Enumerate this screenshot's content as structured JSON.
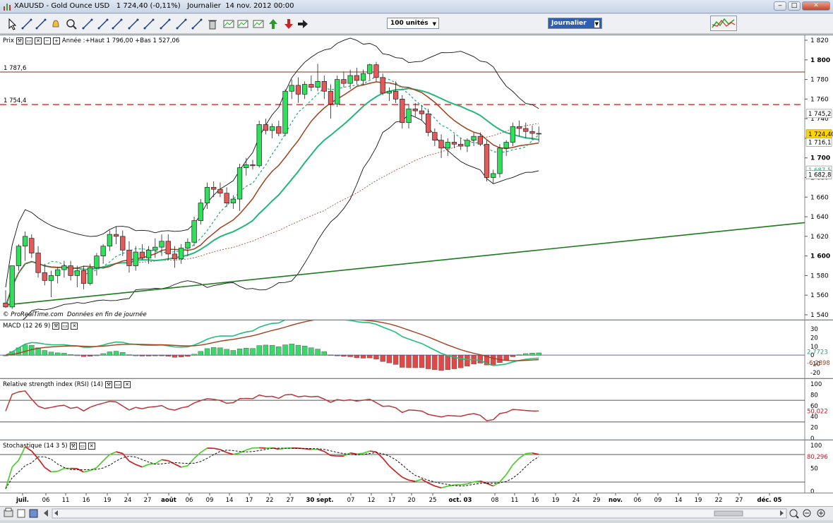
{
  "window": {
    "title": "XAUUSD - Gold Ounce USD   1 724,40 (-0,11%)   Journalier  14 nov. 2012 00:00",
    "buttons": [
      "minimize",
      "maximize",
      "close"
    ]
  },
  "toolbar": {
    "units_select": "100 unités",
    "period_select": "Journalier",
    "tools": [
      "cursor-icon",
      "ruler-icon",
      "text-icon",
      "bell-icon",
      "zoom-icon",
      "line-icon",
      "ray-icon",
      "channel-icon",
      "fibonacci-icon",
      "pitchfork-icon",
      "fan-icon",
      "trend-icon",
      "tools-icon",
      "trash-icon",
      "wave-icon",
      "rect-icon",
      "ellipse-icon",
      "up-arrow-icon",
      "down-arrow-icon",
      "right-arrow-icon"
    ]
  },
  "price_panel": {
    "label": "Prix",
    "info": "Année :+Haut 1 796,00 +Bas 1 527,06",
    "credit": "© ProRealTime.com  Données en fin de journée",
    "hline1_label": "1 787,6",
    "hline2_label": "1 754,4",
    "badges": {
      "bb_upper": "1 745,2",
      "last": "1 724,40",
      "ma": "1 716,1",
      "ma_low": "1 687,5",
      "bb_lower": "1 682,8"
    }
  },
  "macd_panel": {
    "label": "MACD (12 26 9)",
    "value1": "2,7723",
    "value2": "-6,2898",
    "ticks": [
      "30",
      "20",
      "10",
      "0",
      "-10",
      "-20"
    ]
  },
  "rsi_panel": {
    "label": "Relative strength index (RSI) (14)",
    "value": "50,022",
    "ticks": [
      "100",
      "80",
      "60",
      "40",
      "20",
      "0"
    ]
  },
  "stoch_panel": {
    "label": "Stochastique (14 3 5)",
    "value": "80,296",
    "ticks": [
      "100",
      "50",
      "0"
    ]
  },
  "x_axis": {
    "labels": [
      "juil.",
      "06",
      "11",
      "16",
      "19",
      "24",
      "27",
      "août",
      "06",
      "09",
      "14",
      "17",
      "22",
      "27",
      "30 sept.",
      "07",
      "12",
      "17",
      "20",
      "25",
      "oct. 03",
      "08",
      "11",
      "16",
      "19",
      "24",
      "29",
      "nov.",
      "06",
      "09",
      "14",
      "19",
      "22",
      "27",
      "déc. 05"
    ]
  },
  "chart_data": {
    "type": "candlestick",
    "title": "XAUUSD - Gold Ounce USD",
    "period": "Journalier",
    "ylim": [
      1540,
      1820
    ],
    "y_ticks": [
      1540,
      1560,
      1580,
      1600,
      1620,
      1640,
      1660,
      1680,
      1700,
      1720,
      1740,
      1760,
      1780,
      1800,
      1820
    ],
    "horizontal_levels": [
      1787.6,
      1754.4
    ],
    "candles": [
      {
        "o": 1552,
        "h": 1565,
        "l": 1547,
        "c": 1548
      },
      {
        "o": 1548,
        "h": 1590,
        "l": 1546,
        "c": 1590
      },
      {
        "o": 1590,
        "h": 1612,
        "l": 1585,
        "c": 1610
      },
      {
        "o": 1610,
        "h": 1625,
        "l": 1595,
        "c": 1620
      },
      {
        "o": 1618,
        "h": 1622,
        "l": 1598,
        "c": 1603
      },
      {
        "o": 1603,
        "h": 1610,
        "l": 1578,
        "c": 1583
      },
      {
        "o": 1583,
        "h": 1592,
        "l": 1570,
        "c": 1575
      },
      {
        "o": 1575,
        "h": 1585,
        "l": 1558,
        "c": 1580
      },
      {
        "o": 1580,
        "h": 1588,
        "l": 1572,
        "c": 1586
      },
      {
        "o": 1586,
        "h": 1595,
        "l": 1578,
        "c": 1590
      },
      {
        "o": 1590,
        "h": 1595,
        "l": 1575,
        "c": 1580
      },
      {
        "o": 1580,
        "h": 1590,
        "l": 1568,
        "c": 1585
      },
      {
        "o": 1585,
        "h": 1590,
        "l": 1566,
        "c": 1572
      },
      {
        "o": 1572,
        "h": 1592,
        "l": 1570,
        "c": 1588
      },
      {
        "o": 1588,
        "h": 1603,
        "l": 1580,
        "c": 1600
      },
      {
        "o": 1600,
        "h": 1612,
        "l": 1592,
        "c": 1610
      },
      {
        "o": 1610,
        "h": 1626,
        "l": 1605,
        "c": 1622
      },
      {
        "o": 1622,
        "h": 1630,
        "l": 1612,
        "c": 1620
      },
      {
        "o": 1620,
        "h": 1626,
        "l": 1600,
        "c": 1606
      },
      {
        "o": 1606,
        "h": 1615,
        "l": 1583,
        "c": 1590
      },
      {
        "o": 1590,
        "h": 1610,
        "l": 1585,
        "c": 1604
      },
      {
        "o": 1604,
        "h": 1612,
        "l": 1596,
        "c": 1598
      },
      {
        "o": 1598,
        "h": 1610,
        "l": 1592,
        "c": 1606
      },
      {
        "o": 1606,
        "h": 1618,
        "l": 1598,
        "c": 1609
      },
      {
        "o": 1609,
        "h": 1622,
        "l": 1600,
        "c": 1615
      },
      {
        "o": 1615,
        "h": 1622,
        "l": 1596,
        "c": 1602
      },
      {
        "o": 1602,
        "h": 1610,
        "l": 1588,
        "c": 1597
      },
      {
        "o": 1597,
        "h": 1612,
        "l": 1592,
        "c": 1608
      },
      {
        "o": 1608,
        "h": 1618,
        "l": 1600,
        "c": 1614
      },
      {
        "o": 1614,
        "h": 1640,
        "l": 1610,
        "c": 1636
      },
      {
        "o": 1636,
        "h": 1658,
        "l": 1632,
        "c": 1654
      },
      {
        "o": 1654,
        "h": 1675,
        "l": 1648,
        "c": 1670
      },
      {
        "o": 1670,
        "h": 1676,
        "l": 1660,
        "c": 1668
      },
      {
        "o": 1668,
        "h": 1675,
        "l": 1660,
        "c": 1664
      },
      {
        "o": 1664,
        "h": 1670,
        "l": 1650,
        "c": 1654
      },
      {
        "o": 1654,
        "h": 1662,
        "l": 1648,
        "c": 1658
      },
      {
        "o": 1658,
        "h": 1694,
        "l": 1646,
        "c": 1690
      },
      {
        "o": 1690,
        "h": 1700,
        "l": 1682,
        "c": 1693
      },
      {
        "o": 1693,
        "h": 1698,
        "l": 1688,
        "c": 1692
      },
      {
        "o": 1692,
        "h": 1738,
        "l": 1690,
        "c": 1734
      },
      {
        "o": 1734,
        "h": 1740,
        "l": 1724,
        "c": 1728
      },
      {
        "o": 1728,
        "h": 1735,
        "l": 1720,
        "c": 1732
      },
      {
        "o": 1732,
        "h": 1738,
        "l": 1722,
        "c": 1725
      },
      {
        "o": 1725,
        "h": 1770,
        "l": 1722,
        "c": 1768
      },
      {
        "o": 1768,
        "h": 1780,
        "l": 1760,
        "c": 1774
      },
      {
        "o": 1774,
        "h": 1782,
        "l": 1756,
        "c": 1765
      },
      {
        "o": 1765,
        "h": 1778,
        "l": 1760,
        "c": 1775
      },
      {
        "o": 1775,
        "h": 1784,
        "l": 1768,
        "c": 1772
      },
      {
        "o": 1772,
        "h": 1796,
        "l": 1768,
        "c": 1778
      },
      {
        "o": 1778,
        "h": 1784,
        "l": 1760,
        "c": 1768
      },
      {
        "o": 1768,
        "h": 1775,
        "l": 1740,
        "c": 1755
      },
      {
        "o": 1755,
        "h": 1784,
        "l": 1752,
        "c": 1780
      },
      {
        "o": 1780,
        "h": 1788,
        "l": 1772,
        "c": 1776
      },
      {
        "o": 1776,
        "h": 1790,
        "l": 1770,
        "c": 1784
      },
      {
        "o": 1784,
        "h": 1792,
        "l": 1775,
        "c": 1779
      },
      {
        "o": 1779,
        "h": 1790,
        "l": 1774,
        "c": 1786
      },
      {
        "o": 1786,
        "h": 1796,
        "l": 1780,
        "c": 1795
      },
      {
        "o": 1795,
        "h": 1798,
        "l": 1778,
        "c": 1782
      },
      {
        "o": 1782,
        "h": 1786,
        "l": 1764,
        "c": 1766
      },
      {
        "o": 1766,
        "h": 1772,
        "l": 1758,
        "c": 1768
      },
      {
        "o": 1768,
        "h": 1778,
        "l": 1756,
        "c": 1760
      },
      {
        "o": 1760,
        "h": 1764,
        "l": 1730,
        "c": 1736
      },
      {
        "o": 1736,
        "h": 1755,
        "l": 1730,
        "c": 1750
      },
      {
        "o": 1750,
        "h": 1756,
        "l": 1742,
        "c": 1748
      },
      {
        "o": 1748,
        "h": 1754,
        "l": 1738,
        "c": 1745
      },
      {
        "o": 1745,
        "h": 1750,
        "l": 1722,
        "c": 1726
      },
      {
        "o": 1726,
        "h": 1730,
        "l": 1712,
        "c": 1718
      },
      {
        "o": 1718,
        "h": 1724,
        "l": 1700,
        "c": 1710
      },
      {
        "o": 1710,
        "h": 1720,
        "l": 1702,
        "c": 1716
      },
      {
        "o": 1716,
        "h": 1724,
        "l": 1710,
        "c": 1714
      },
      {
        "o": 1714,
        "h": 1720,
        "l": 1708,
        "c": 1712
      },
      {
        "o": 1712,
        "h": 1720,
        "l": 1706,
        "c": 1718
      },
      {
        "o": 1718,
        "h": 1726,
        "l": 1712,
        "c": 1722
      },
      {
        "o": 1722,
        "h": 1726,
        "l": 1712,
        "c": 1714
      },
      {
        "o": 1714,
        "h": 1718,
        "l": 1676,
        "c": 1680
      },
      {
        "o": 1680,
        "h": 1688,
        "l": 1674,
        "c": 1684
      },
      {
        "o": 1684,
        "h": 1714,
        "l": 1680,
        "c": 1710
      },
      {
        "o": 1710,
        "h": 1718,
        "l": 1702,
        "c": 1716
      },
      {
        "o": 1716,
        "h": 1736,
        "l": 1712,
        "c": 1732
      },
      {
        "o": 1732,
        "h": 1738,
        "l": 1722,
        "c": 1730
      },
      {
        "o": 1730,
        "h": 1736,
        "l": 1720,
        "c": 1727
      },
      {
        "o": 1727,
        "h": 1733,
        "l": 1718,
        "c": 1725
      },
      {
        "o": 1725,
        "h": 1732,
        "l": 1716,
        "c": 1724.4
      }
    ],
    "macd": {
      "line_last": 2.7723,
      "signal_last": -6.2898,
      "ylim": [
        -25,
        35
      ]
    },
    "rsi": {
      "last": 50.022,
      "levels": [
        30,
        70
      ]
    },
    "stochastic": {
      "last": 80.296,
      "levels": [
        20,
        80
      ]
    }
  }
}
